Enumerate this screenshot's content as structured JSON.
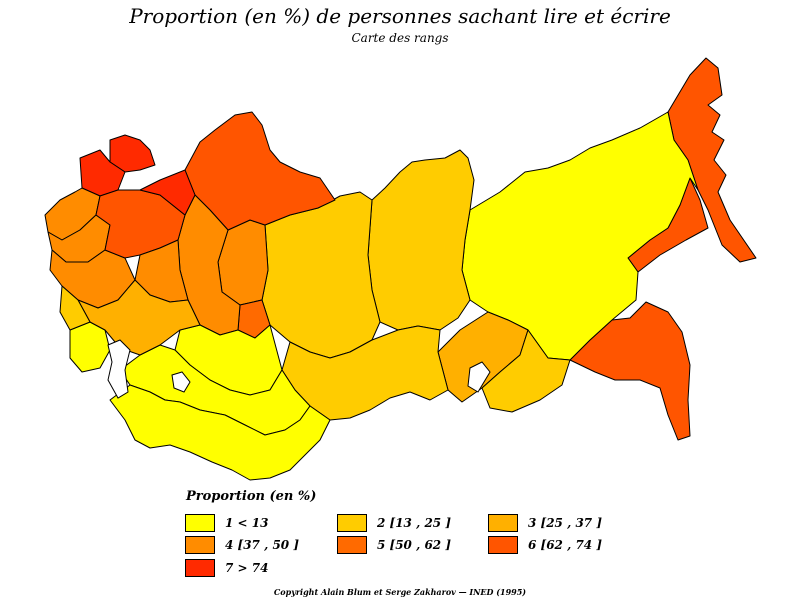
{
  "title": "Proportion (en %) de personnes sachant lire et écrire",
  "subtitle": "Carte des rangs",
  "legend": {
    "title": "Proportion (en %)",
    "items": [
      {
        "label": "1  <  13",
        "color": "#ffff00"
      },
      {
        "label": "2 [13 , 25 ]",
        "color": "#ffcc00"
      },
      {
        "label": "3 [25 , 37 ]",
        "color": "#ffb000"
      },
      {
        "label": "4 [37 , 50 ]",
        "color": "#ff8c00"
      },
      {
        "label": "5 [50 , 62 ]",
        "color": "#ff6a00"
      },
      {
        "label": "6 [62 , 74 ]",
        "color": "#ff5500"
      },
      {
        "label": "7  >  74",
        "color": "#ff2a00"
      }
    ]
  },
  "copyright": "Copyright Alain Blum et Serge Zakharov  —  INED (1995)"
}
